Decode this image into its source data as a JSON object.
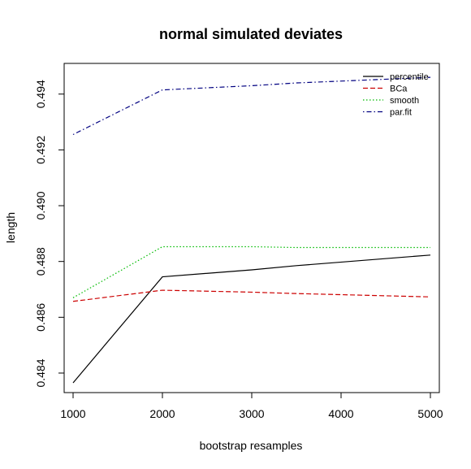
{
  "chart_data": {
    "type": "line",
    "title": "normal simulated deviates",
    "xlabel": "bootstrap resamples",
    "ylabel": "length",
    "x": [
      1000,
      2000,
      3000,
      3500,
      5000
    ],
    "xlim": [
      900,
      5100
    ],
    "ylim": [
      0.4833,
      0.4951
    ],
    "x_ticks": [
      "1000",
      "2000",
      "3000",
      "4000",
      "5000"
    ],
    "y_ticks": [
      "0.484",
      "0.486",
      "0.488",
      "0.490",
      "0.492",
      "0.494"
    ],
    "grid": false,
    "legend_position": "top-right",
    "series": [
      {
        "name": "percentile",
        "color": "#000000",
        "dash": "solid",
        "values": [
          0.48365,
          0.48745,
          0.4877,
          0.48785,
          0.48823
        ]
      },
      {
        "name": "BCa",
        "color": "#cc0000",
        "dash": "dashed",
        "values": [
          0.48657,
          0.48697,
          0.4869,
          0.48685,
          0.48673
        ]
      },
      {
        "name": "smooth",
        "color": "#00bb00",
        "dash": "dotted",
        "values": [
          0.4867,
          0.48853,
          0.48853,
          0.4885,
          0.4885
        ]
      },
      {
        "name": "par.fit",
        "color": "#000080",
        "dash": "dotdash",
        "values": [
          0.49255,
          0.49415,
          0.4943,
          0.4944,
          0.4946
        ]
      }
    ]
  }
}
